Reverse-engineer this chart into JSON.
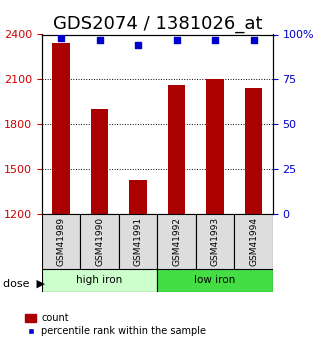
{
  "title": "GDS2074 / 1381026_at",
  "categories": [
    "GSM41989",
    "GSM41990",
    "GSM41991",
    "GSM41992",
    "GSM41993",
    "GSM41994"
  ],
  "bar_values": [
    2340,
    1900,
    1430,
    2060,
    2100,
    2040
  ],
  "percentile_values": [
    98,
    97,
    94,
    97,
    97,
    97
  ],
  "bar_color": "#aa0000",
  "dot_color": "#0000cc",
  "ylim_left": [
    1200,
    2400
  ],
  "ylim_right": [
    0,
    100
  ],
  "yticks_left": [
    1200,
    1500,
    1800,
    2100,
    2400
  ],
  "yticks_right": [
    0,
    25,
    50,
    75,
    100
  ],
  "ytick_labels_right": [
    "0",
    "25",
    "50",
    "75",
    "100%"
  ],
  "grid_lines": [
    2100,
    1800,
    1500
  ],
  "groups": [
    {
      "label": "high iron",
      "indices": [
        0,
        1,
        2
      ],
      "color": "#ccffcc"
    },
    {
      "label": "low iron",
      "indices": [
        3,
        4,
        5
      ],
      "color": "#44dd44"
    }
  ],
  "dose_label": "dose",
  "legend_items": [
    "count",
    "percentile rank within the sample"
  ],
  "left_tick_color": "#cc0000",
  "right_tick_color": "#0000cc",
  "title_fontsize": 13,
  "axis_fontsize": 9,
  "bar_width": 0.45
}
